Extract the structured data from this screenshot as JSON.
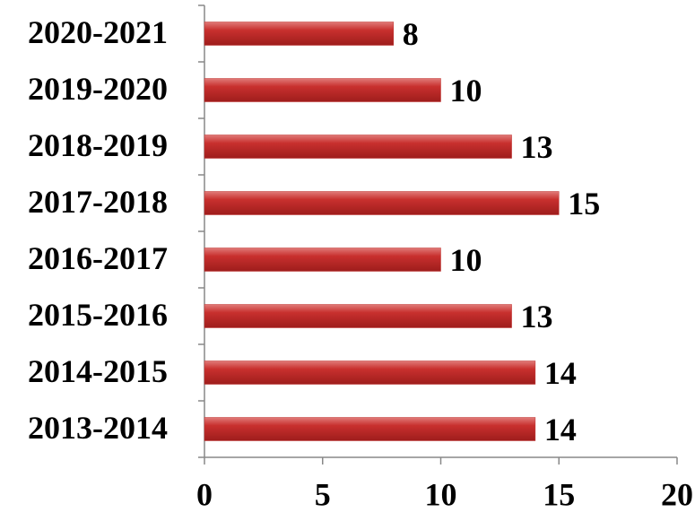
{
  "chart_data": {
    "type": "bar",
    "orientation": "horizontal",
    "categories": [
      "2013-2014",
      "2014-2015",
      "2015-2016",
      "2016-2017",
      "2017-2018",
      "2018-2019",
      "2019-2020",
      "2020-2021"
    ],
    "values": [
      14,
      14,
      13,
      10,
      15,
      13,
      10,
      8
    ],
    "color": "#c0302e",
    "xlim": [
      0,
      20
    ],
    "xticks": [
      0,
      5,
      10,
      15,
      20
    ],
    "grid": false
  }
}
